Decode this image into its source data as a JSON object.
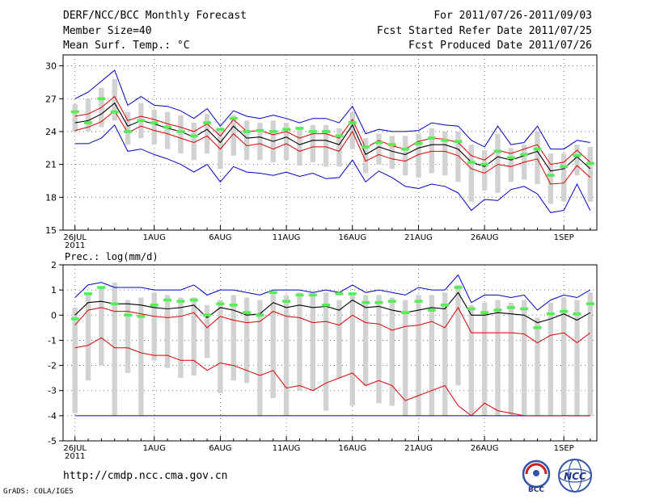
{
  "header": {
    "title": "DERF/NCC/BCC Monthly Forecast",
    "member_size": "Member Size=40",
    "variable": "Mean Surf. Temp.: °C",
    "forecast_range": "For 2011/07/26-2011/09/03",
    "started_refer": "Fcst Started Refer Date 2011/07/25",
    "produced": "Fcst Produced Date 2011/07/26"
  },
  "footer": {
    "url": "http://cmdp.ncc.cma.gov.cn",
    "grads": "GrADS: COLA/IGES",
    "logo_bcc": "BCC",
    "logo_ncc": "NCC"
  },
  "colors": {
    "box": "#d2d2d2",
    "mean": "#000000",
    "spread": "#dd0000",
    "extreme": "#0000cc",
    "obs": "#55ee55",
    "grid": "#555555"
  },
  "chart_data": [
    {
      "type": "line",
      "title": "Mean Surf. Temp.: °C",
      "ylim": [
        15,
        31
      ],
      "yticks": [
        15,
        18,
        21,
        24,
        27,
        30
      ],
      "xlim": [
        -0.9,
        39.5
      ],
      "xticks": [
        {
          "day": 0,
          "label": "26JUL",
          "sub": "2011"
        },
        {
          "day": 6,
          "label": "1AUG"
        },
        {
          "day": 11,
          "label": "6AUG"
        },
        {
          "day": 16,
          "label": "11AUG"
        },
        {
          "day": 21,
          "label": "16AUG"
        },
        {
          "day": 26,
          "label": "21AUG"
        },
        {
          "day": 31,
          "label": "26AUG"
        },
        {
          "day": 37,
          "label": "1SEP"
        }
      ],
      "mean": [
        24.8,
        25.0,
        25.6,
        26.6,
        24.5,
        25.0,
        24.7,
        24.3,
        24.0,
        23.5,
        24.2,
        23.0,
        24.5,
        23.4,
        23.5,
        23.1,
        23.5,
        22.8,
        23.2,
        23.2,
        22.8,
        24.6,
        21.9,
        22.6,
        22.2,
        21.9,
        22.5,
        22.8,
        22.8,
        22.4,
        21.2,
        20.8,
        21.7,
        21.4,
        21.8,
        22.2,
        20.4,
        20.6,
        21.7,
        20.6
      ],
      "upper_spread": [
        25.4,
        25.6,
        26.2,
        27.2,
        25.0,
        25.4,
        25.1,
        24.7,
        24.4,
        24.0,
        24.7,
        23.6,
        25.1,
        24.0,
        24.1,
        23.7,
        24.0,
        23.4,
        23.8,
        23.8,
        23.4,
        25.1,
        22.5,
        23.2,
        22.7,
        22.4,
        23.1,
        23.4,
        23.3,
        23.0,
        21.8,
        21.4,
        22.3,
        22.0,
        22.4,
        22.8,
        21.0,
        21.2,
        22.3,
        21.2
      ],
      "lower_spread": [
        24.1,
        24.4,
        24.9,
        25.9,
        23.9,
        24.5,
        24.1,
        23.8,
        23.4,
        23.0,
        23.6,
        22.4,
        23.8,
        22.7,
        22.9,
        22.4,
        22.9,
        22.2,
        22.6,
        22.6,
        22.2,
        24.0,
        21.3,
        21.9,
        21.5,
        21.3,
        21.9,
        22.2,
        22.2,
        21.8,
        20.6,
        20.2,
        21.0,
        20.8,
        21.2,
        21.5,
        19.2,
        19.3,
        20.9,
        19.8
      ],
      "max": [
        27.0,
        27.6,
        28.6,
        29.6,
        26.4,
        27.2,
        26.4,
        26.3,
        25.9,
        25.2,
        26.1,
        24.5,
        25.9,
        25.4,
        25.2,
        25.5,
        25.2,
        24.8,
        25.2,
        25.2,
        24.8,
        26.3,
        23.8,
        24.2,
        24.0,
        24.0,
        24.1,
        24.8,
        24.6,
        24.5,
        23.2,
        22.6,
        24.5,
        22.8,
        23.0,
        24.5,
        22.4,
        22.4,
        23.2,
        23.0
      ],
      "min": [
        22.9,
        22.9,
        23.4,
        24.6,
        22.2,
        22.4,
        21.9,
        21.5,
        21.0,
        20.3,
        21.0,
        19.4,
        20.8,
        20.3,
        20.2,
        20.0,
        20.3,
        19.9,
        20.2,
        19.7,
        19.8,
        21.4,
        19.4,
        20.4,
        19.8,
        19.0,
        18.8,
        19.2,
        19.0,
        18.4,
        16.8,
        17.8,
        17.7,
        18.7,
        19.0,
        18.3,
        16.6,
        16.8,
        19.2,
        16.8
      ],
      "box_high": [
        26.5,
        27.0,
        28.0,
        28.8,
        25.8,
        26.6,
        26.0,
        25.8,
        25.5,
        24.8,
        25.6,
        24.2,
        25.5,
        25.0,
        24.8,
        25.0,
        24.8,
        24.4,
        24.6,
        24.6,
        24.3,
        25.8,
        23.4,
        23.8,
        23.6,
        23.6,
        23.8,
        24.3,
        24.0,
        24.0,
        22.8,
        22.3,
        23.8,
        22.5,
        22.8,
        24.0,
        22.0,
        22.0,
        22.8,
        22.6
      ],
      "box_low": [
        24.0,
        24.0,
        24.4,
        25.0,
        22.8,
        23.4,
        22.8,
        22.4,
        22.0,
        21.4,
        22.0,
        20.6,
        21.8,
        21.4,
        21.4,
        21.2,
        21.4,
        20.9,
        21.2,
        20.8,
        20.8,
        22.4,
        20.2,
        21.0,
        20.6,
        20.0,
        19.8,
        20.2,
        20.0,
        19.4,
        17.6,
        18.6,
        18.4,
        19.4,
        19.6,
        19.2,
        17.4,
        17.6,
        20.0,
        17.6
      ],
      "obs": [
        25.8,
        24.8,
        27.0,
        25.8,
        24.0,
        25.0,
        24.8,
        24.4,
        24.0,
        23.6,
        24.8,
        24.2,
        25.2,
        24.0,
        24.1,
        24.0,
        24.2,
        24.3,
        24.0,
        24.0,
        23.6,
        24.8,
        22.6,
        23.0,
        22.8,
        22.4,
        22.9,
        23.4,
        23.2,
        23.1,
        21.2,
        21.0,
        22.2,
        21.6,
        21.9,
        22.4,
        20.0,
        20.8,
        21.8,
        21.1
      ]
    },
    {
      "type": "line",
      "title": "Prec.: log(mm/d)",
      "ylim": [
        -5,
        2
      ],
      "yticks": [
        -5,
        -4,
        -3,
        -2,
        -1,
        0,
        1,
        2
      ],
      "xlim": [
        -0.9,
        39.5
      ],
      "xticks": [
        {
          "day": 0,
          "label": "26JUL",
          "sub": "2011"
        },
        {
          "day": 6,
          "label": "1AUG"
        },
        {
          "day": 11,
          "label": "6AUG"
        },
        {
          "day": 16,
          "label": "11AUG"
        },
        {
          "day": 21,
          "label": "16AUG"
        },
        {
          "day": 26,
          "label": "21AUG"
        },
        {
          "day": 31,
          "label": "26AUG"
        },
        {
          "day": 37,
          "label": "1SEP"
        }
      ],
      "baseline": -4,
      "mean": [
        0.0,
        0.5,
        0.55,
        0.45,
        0.45,
        0.4,
        0.3,
        0.25,
        0.3,
        0.4,
        -0.1,
        0.3,
        0.2,
        0.0,
        0.05,
        0.5,
        0.3,
        0.4,
        0.3,
        0.35,
        0.2,
        0.6,
        0.3,
        0.35,
        0.2,
        0.1,
        0.2,
        0.3,
        0.25,
        0.9,
        0.0,
        0.0,
        0.1,
        0.05,
        0.0,
        -0.3,
        -0.15,
        0.05,
        -0.2,
        0.1
      ],
      "upper_spread": [
        -0.4,
        0.2,
        0.3,
        0.15,
        0.15,
        0.05,
        -0.05,
        -0.1,
        -0.05,
        0.1,
        -0.5,
        -0.05,
        -0.2,
        -0.3,
        -0.25,
        0.15,
        -0.05,
        -0.1,
        -0.3,
        -0.25,
        -0.4,
        0.0,
        -0.3,
        -0.35,
        -0.6,
        -0.45,
        -0.4,
        -0.25,
        -0.5,
        0.3,
        -0.7,
        -0.7,
        -0.7,
        -0.7,
        -0.75,
        -1.1,
        -0.8,
        -0.7,
        -1.1,
        -0.7
      ],
      "lower_spread": [
        -1.3,
        -1.2,
        -0.9,
        -1.3,
        -1.3,
        -1.5,
        -1.6,
        -1.6,
        -1.8,
        -1.8,
        -2.2,
        -1.9,
        -2.0,
        -2.2,
        -2.4,
        -2.2,
        -2.9,
        -2.8,
        -3.0,
        -2.7,
        -2.5,
        -2.3,
        -2.8,
        -2.6,
        -2.8,
        -3.4,
        -3.2,
        -3.0,
        -2.8,
        -3.6,
        -4.0,
        -3.5,
        -3.8,
        -3.9,
        -4.0,
        -4.0,
        -4.0,
        -4.0,
        -4.0,
        -4.0
      ],
      "max": [
        0.7,
        1.2,
        1.3,
        1.1,
        1.1,
        1.1,
        1.0,
        1.0,
        1.0,
        1.2,
        0.8,
        1.0,
        1.0,
        0.9,
        0.8,
        1.0,
        1.0,
        1.0,
        0.9,
        1.0,
        0.9,
        1.2,
        0.9,
        1.0,
        0.9,
        0.8,
        1.1,
        1.0,
        1.0,
        1.6,
        0.5,
        0.8,
        0.8,
        0.7,
        0.8,
        0.2,
        0.6,
        0.8,
        0.7,
        1.0
      ],
      "box_high": [
        0.3,
        0.9,
        1.1,
        1.3,
        0.6,
        0.7,
        0.9,
        0.8,
        0.7,
        0.7,
        0.4,
        0.6,
        0.8,
        0.7,
        0.6,
        0.9,
        0.8,
        0.9,
        0.9,
        0.9,
        0.6,
        0.9,
        0.8,
        0.8,
        0.7,
        0.6,
        0.8,
        0.8,
        0.9,
        1.2,
        0.4,
        0.5,
        0.6,
        0.5,
        0.6,
        -0.1,
        0.5,
        0.7,
        0.6,
        0.9
      ],
      "box_low": [
        -3.9,
        -2.6,
        -2.0,
        -4.0,
        -2.3,
        -4.0,
        -1.8,
        -2.1,
        -2.5,
        -2.4,
        -1.7,
        -3.1,
        -2.6,
        -2.7,
        -4.0,
        -3.3,
        -4.0,
        -3.0,
        -3.0,
        -3.8,
        -2.5,
        -3.6,
        -2.8,
        -3.5,
        -3.6,
        -4.0,
        -4.0,
        -4.0,
        -4.0,
        -2.8,
        -4.0,
        -4.0,
        -4.0,
        -4.0,
        -4.0,
        -4.0,
        -4.0,
        -4.0,
        -4.0,
        -4.0
      ],
      "obs": [
        -0.15,
        0.85,
        1.1,
        0.45,
        0.0,
        -0.05,
        0.4,
        0.6,
        0.55,
        0.6,
        0.0,
        0.45,
        0.4,
        0.1,
        0.0,
        0.9,
        0.55,
        0.8,
        0.8,
        0.4,
        0.85,
        0.85,
        0.5,
        0.5,
        0.55,
        0.1,
        0.55,
        0.2,
        0.4,
        1.1,
        0.25,
        0.1,
        0.2,
        0.3,
        0.25,
        -0.5,
        0.05,
        0.15,
        0.05,
        0.45
      ]
    }
  ]
}
